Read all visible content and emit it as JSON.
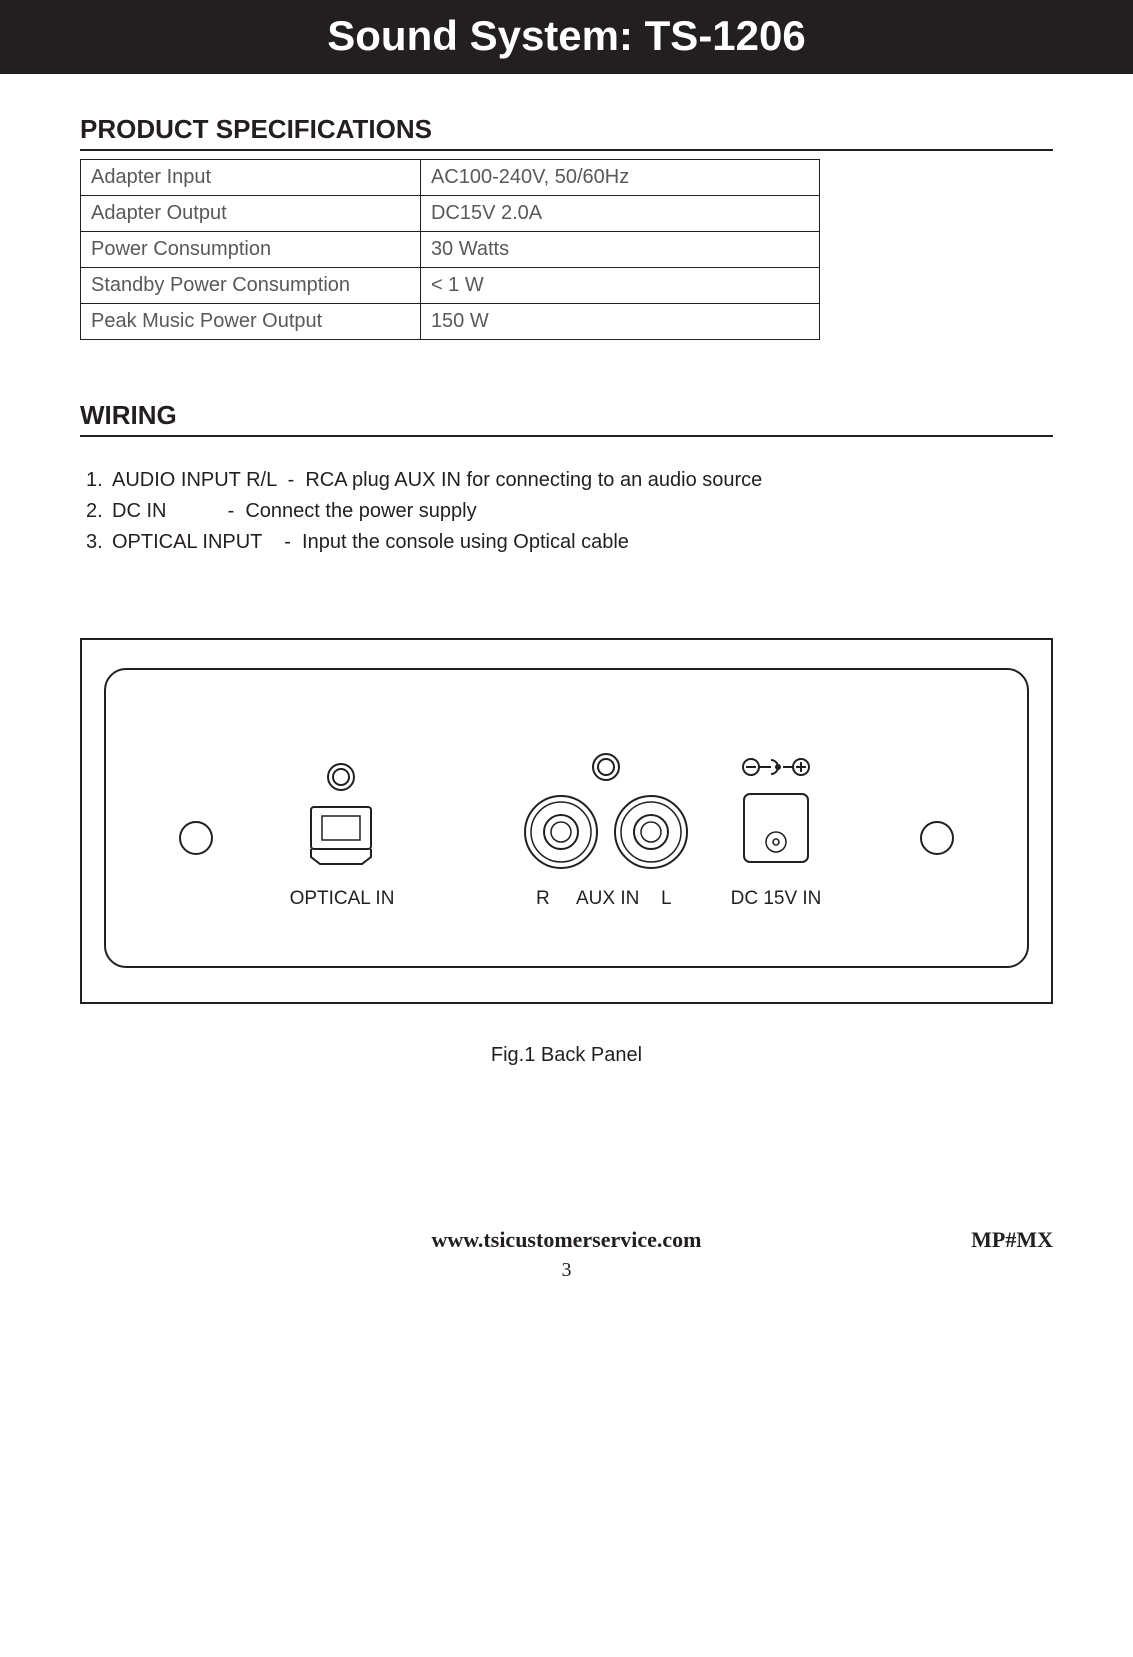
{
  "title": "Sound System: TS-1206",
  "sections": {
    "specs_heading": "PRODUCT SPECIFICATIONS",
    "wiring_heading": "WIRING"
  },
  "spec_table": {
    "rows": [
      {
        "label": "Adapter Input",
        "value": "AC100-240V, 50/60Hz"
      },
      {
        "label": "Adapter Output",
        "value": "DC15V 2.0A"
      },
      {
        "label": "Power Consumption",
        "value": "30 Watts"
      },
      {
        "label": "Standby Power Consumption",
        "value": "< 1 W"
      },
      {
        "label": "Peak Music Power Output",
        "value": "150 W"
      }
    ]
  },
  "wiring": {
    "items": [
      {
        "num": "1.",
        "term": "AUDIO INPUT R/L  -  ",
        "desc": "RCA plug AUX IN for connecting to an audio source"
      },
      {
        "num": "2.",
        "term": "DC IN           -  ",
        "desc": "Connect the power supply"
      },
      {
        "num": "3.",
        "term": "OPTICAL INPUT    -  ",
        "desc": "Input the console using Optical cable"
      }
    ]
  },
  "panel": {
    "labels": {
      "optical": "OPTICAL IN",
      "r": "R",
      "aux": "AUX IN",
      "l": "L",
      "dc": "DC 15V IN"
    }
  },
  "figure_caption": "Fig.1  Back Panel",
  "footer": {
    "url": "www.tsicustomerservice.com",
    "code": "MP#MX",
    "page": "3"
  },
  "colors": {
    "stroke": "#231f20",
    "bg": "#ffffff"
  }
}
